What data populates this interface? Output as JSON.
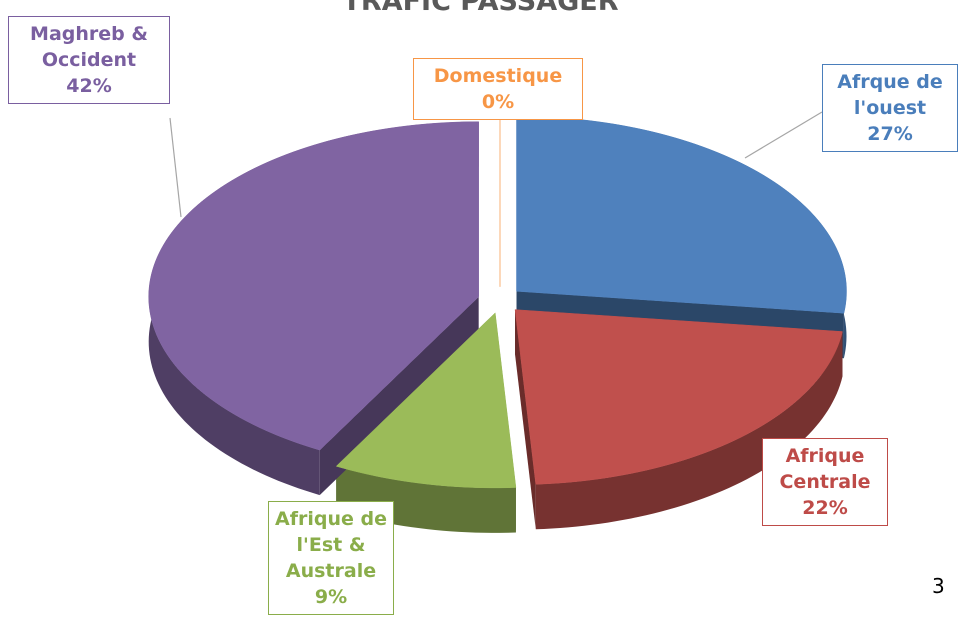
{
  "chart_data": {
    "type": "pie",
    "title": "TRAFIC PASSAGER",
    "categories": [
      "Domestique",
      "Afrque de l'ouest",
      "Afrique Centrale",
      "Afrique de l'Est & Australe",
      "Maghreb & Occident"
    ],
    "values": [
      0,
      27,
      22,
      9,
      42
    ],
    "value_labels": [
      "0%",
      "27%",
      "22%",
      "9%",
      "42%"
    ],
    "colors": [
      "#f79646",
      "#4f81bd",
      "#c0504d",
      "#9bbb59",
      "#8064a2"
    ]
  },
  "page_number": "3"
}
